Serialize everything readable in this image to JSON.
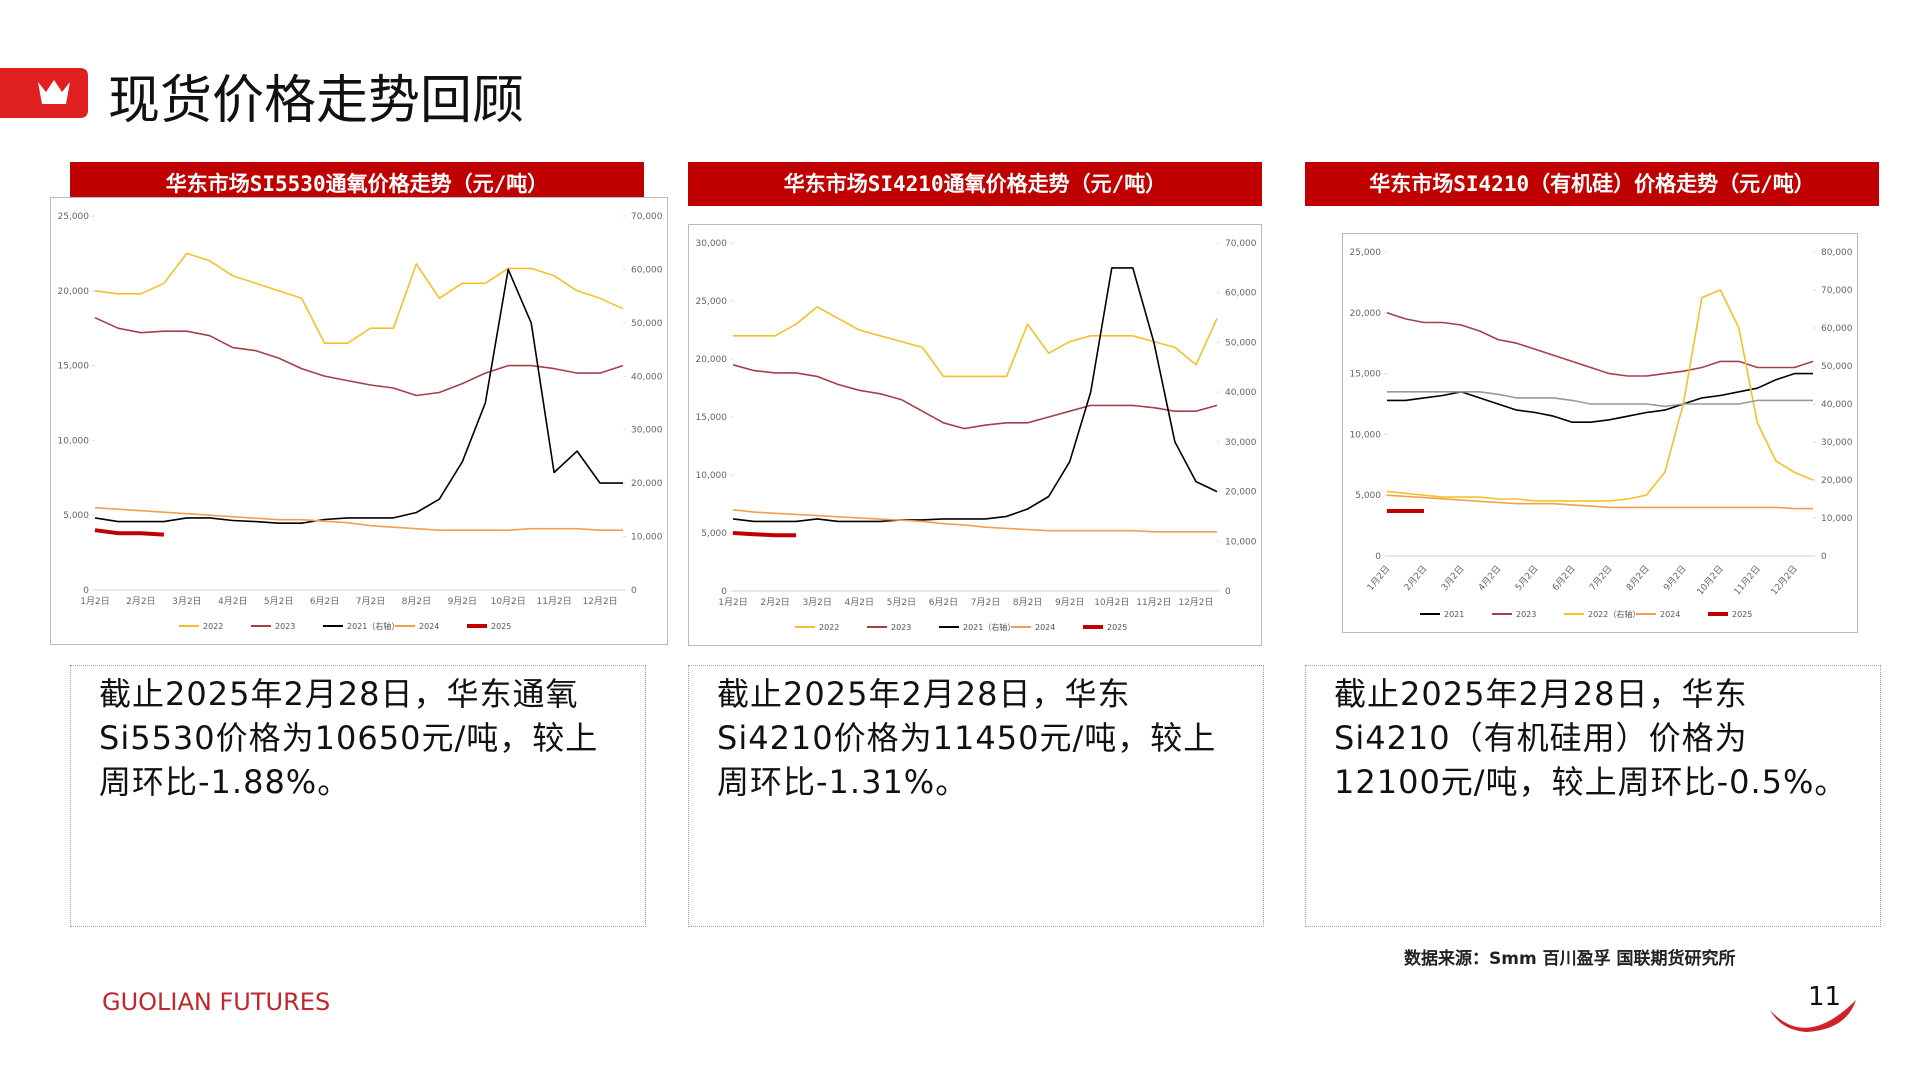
{
  "title": "现货价格走势回顾",
  "chart_data": [
    {
      "type": "line",
      "title": "华东市场SI5530通氧价格走势（元/吨）",
      "categories": [
        "1月2日",
        null,
        "2月2日",
        null,
        "3月2日",
        null,
        "4月2日",
        null,
        "5月2日",
        null,
        "6月2日",
        null,
        "7月2日",
        null,
        "8月2日",
        null,
        "9月2日",
        null,
        "10月2日",
        null,
        "11月2日",
        null,
        "12月2日",
        null
      ],
      "ylim": [
        0,
        25000
      ],
      "yticks": [
        0,
        {
          "value": 5000,
          "label": "5,000"
        },
        {
          "value": 10000,
          "label": "10,000"
        },
        {
          "value": 15000,
          "label": "15,000"
        },
        {
          "value": 20000,
          "label": "20,000"
        },
        {
          "value": 25000,
          "label": "25,000"
        }
      ],
      "y2lim": [
        0,
        70000
      ],
      "y2ticks": [
        0,
        {
          "value": 10000,
          "label": "10,000"
        },
        {
          "value": 20000,
          "label": "20,000"
        },
        {
          "value": 30000,
          "label": "30,000"
        },
        {
          "value": 40000,
          "label": "40,000"
        },
        {
          "value": 50000,
          "label": "50,000"
        },
        {
          "value": 60000,
          "label": "60,000"
        },
        {
          "value": 70000,
          "label": "70,000"
        }
      ],
      "legend": "bottom",
      "x_label_rotation": 0,
      "series": [
        {
          "name": "2022",
          "color": "#f5c02a",
          "values": [
            20000,
            19800,
            19800,
            20500,
            22500,
            22000,
            21000,
            20500,
            20000,
            19500,
            16500,
            16500,
            17500,
            17500,
            21800,
            19500,
            20500,
            20500,
            21500,
            21500,
            21000,
            20000,
            19500,
            18800
          ]
        },
        {
          "name": "2023",
          "color": "#a5404a",
          "values": [
            18200,
            17500,
            17200,
            17300,
            17300,
            17000,
            16200,
            16000,
            15500,
            14800,
            14300,
            14000,
            13700,
            13500,
            13000,
            13200,
            13800,
            14500,
            15000,
            15000,
            14800,
            14500,
            14500,
            15000
          ]
        },
        {
          "name": "2021（右轴）",
          "color": "#000000",
          "axis": "y2",
          "values": [
            13500,
            12800,
            12800,
            12800,
            13500,
            13500,
            13000,
            12800,
            12500,
            12500,
            13200,
            13500,
            13500,
            13500,
            14500,
            17000,
            24000,
            35000,
            60000,
            50000,
            22000,
            26000,
            20000,
            20000
          ]
        },
        {
          "name": "2024",
          "color": "#f0a050",
          "values": [
            5500,
            5400,
            5300,
            5200,
            5100,
            5000,
            4900,
            4800,
            4700,
            4700,
            4600,
            4500,
            4300,
            4200,
            4100,
            4000,
            4000,
            4000,
            4000,
            4100,
            4100,
            4100,
            4000,
            4000
          ]
        },
        {
          "name": "2025",
          "color": "#c00000",
          "width": 4,
          "values": [
            4000,
            3800,
            3800,
            3700,
            null,
            null,
            null,
            null,
            null,
            null,
            null,
            null,
            null,
            null,
            null,
            null,
            null,
            null,
            null,
            null,
            null,
            null,
            null,
            null
          ]
        }
      ]
    },
    {
      "type": "line",
      "title": "华东市场SI4210通氧价格走势（元/吨）",
      "categories": [
        "1月2日",
        null,
        "2月2日",
        null,
        "3月2日",
        null,
        "4月2日",
        null,
        "5月2日",
        null,
        "6月2日",
        null,
        "7月2日",
        null,
        "8月2日",
        null,
        "9月2日",
        null,
        "10月2日",
        null,
        "11月2日",
        null,
        "12月2日",
        null
      ],
      "ylim": [
        0,
        30000
      ],
      "yticks": [
        0,
        {
          "value": 5000,
          "label": "5,000"
        },
        {
          "value": 10000,
          "label": "10,000"
        },
        {
          "value": 15000,
          "label": "15,000"
        },
        {
          "value": 20000,
          "label": "20,000"
        },
        {
          "value": 25000,
          "label": "25,000"
        },
        {
          "value": 30000,
          "label": "30,000"
        }
      ],
      "y2lim": [
        0,
        70000
      ],
      "y2ticks": [
        0,
        {
          "value": 10000,
          "label": "10,000"
        },
        {
          "value": 20000,
          "label": "20,000"
        },
        {
          "value": 30000,
          "label": "30,000"
        },
        {
          "value": 40000,
          "label": "40,000"
        },
        {
          "value": 50000,
          "label": "50,000"
        },
        {
          "value": 60000,
          "label": "60,000"
        },
        {
          "value": 70000,
          "label": "70,000"
        }
      ],
      "legend": "bottom",
      "x_label_rotation": 0,
      "series": [
        {
          "name": "2022",
          "color": "#f5c02a",
          "values": [
            22000,
            22000,
            22000,
            23000,
            24500,
            23500,
            22500,
            22000,
            21500,
            21000,
            18500,
            18500,
            18500,
            18500,
            23000,
            20500,
            21500,
            22000,
            22000,
            22000,
            21500,
            21000,
            19500,
            23500
          ]
        },
        {
          "name": "2023",
          "color": "#a5404a",
          "values": [
            19500,
            19000,
            18800,
            18800,
            18500,
            17800,
            17300,
            17000,
            16500,
            15500,
            14500,
            14000,
            14300,
            14500,
            14500,
            15000,
            15500,
            16000,
            16000,
            16000,
            15800,
            15500,
            15500,
            16000
          ]
        },
        {
          "name": "2021（右轴）",
          "color": "#000000",
          "axis": "y2",
          "values": [
            14500,
            14000,
            14000,
            14000,
            14500,
            14000,
            14000,
            14000,
            14300,
            14300,
            14500,
            14500,
            14500,
            15000,
            16500,
            19000,
            26000,
            40000,
            65000,
            65000,
            50000,
            30000,
            22000,
            20000
          ]
        },
        {
          "name": "2024",
          "color": "#f0a050",
          "values": [
            7000,
            6800,
            6700,
            6600,
            6500,
            6400,
            6300,
            6200,
            6100,
            6000,
            5800,
            5700,
            5500,
            5400,
            5300,
            5200,
            5200,
            5200,
            5200,
            5200,
            5100,
            5100,
            5100,
            5100
          ]
        },
        {
          "name": "2025",
          "color": "#c00000",
          "width": 4,
          "values": [
            5000,
            4900,
            4800,
            4800,
            null,
            null,
            null,
            null,
            null,
            null,
            null,
            null,
            null,
            null,
            null,
            null,
            null,
            null,
            null,
            null,
            null,
            null,
            null,
            null
          ]
        }
      ]
    },
    {
      "type": "line",
      "title": "华东市场SI4210（有机硅）价格走势（元/吨）",
      "categories": [
        "1月2日",
        null,
        "2月2日",
        null,
        "3月2日",
        null,
        "4月2日",
        null,
        "5月2日",
        null,
        "6月2日",
        null,
        "7月2日",
        null,
        "8月2日",
        null,
        "9月2日",
        null,
        "10月2日",
        null,
        "11月2日",
        null,
        "12月2日",
        null
      ],
      "ylim": [
        0,
        25000
      ],
      "yticks": [
        0,
        {
          "value": 5000,
          "label": "5,000"
        },
        {
          "value": 10000,
          "label": "10,000"
        },
        {
          "value": 15000,
          "label": "15,000"
        },
        {
          "value": 20000,
          "label": "20,000"
        },
        {
          "value": 25000,
          "label": "25,000"
        }
      ],
      "y2lim": [
        0,
        80000
      ],
      "y2ticks": [
        0,
        {
          "value": 10000,
          "label": "10,000"
        },
        {
          "value": 20000,
          "label": "20,000"
        },
        {
          "value": 30000,
          "label": "30,000"
        },
        {
          "value": 40000,
          "label": "40,000"
        },
        {
          "value": 50000,
          "label": "50,000"
        },
        {
          "value": 60000,
          "label": "60,000"
        },
        {
          "value": 70000,
          "label": "70,000"
        },
        {
          "value": 80000,
          "label": "80,000"
        }
      ],
      "legend": "bottom",
      "x_label_rotation": -50,
      "series": [
        {
          "name": "2021",
          "color": "#000000",
          "values": [
            12800,
            12800,
            13000,
            13200,
            13500,
            13000,
            12500,
            12000,
            11800,
            11500,
            11000,
            11000,
            11200,
            11500,
            11800,
            12000,
            12500,
            13000,
            13200,
            13500,
            13800,
            14500,
            15000,
            15000
          ]
        },
        {
          "name": "2023",
          "color": "#a5404a",
          "values": [
            20000,
            19500,
            19200,
            19200,
            19000,
            18500,
            17800,
            17500,
            17000,
            16500,
            16000,
            15500,
            15000,
            14800,
            14800,
            15000,
            15200,
            15500,
            16000,
            16000,
            15500,
            15500,
            15500,
            16000
          ]
        },
        {
          "name": "2022（右轴）",
          "color": "#f5c02a",
          "axis": "y2",
          "values": [
            17000,
            16500,
            16000,
            15500,
            15500,
            15500,
            15000,
            15000,
            14500,
            14500,
            14500,
            14500,
            14500,
            15000,
            16000,
            22000,
            40000,
            68000,
            70000,
            60000,
            35000,
            25000,
            22000,
            20000
          ]
        },
        {
          "name": "2024",
          "color": "#f0a050",
          "values": [
            5000,
            4900,
            4800,
            4700,
            4600,
            4500,
            4400,
            4300,
            4300,
            4300,
            4200,
            4100,
            4000,
            4000,
            4000,
            4000,
            4000,
            4000,
            4000,
            4000,
            4000,
            4000,
            3900,
            3900
          ]
        },
        {
          "name": "2025",
          "color": "#c00000",
          "width": 4,
          "values": [
            3700,
            3700,
            3700,
            null,
            null,
            null,
            null,
            null,
            null,
            null,
            null,
            null,
            null,
            null,
            null,
            null,
            null,
            null,
            null,
            null,
            null,
            null,
            null,
            null
          ]
        },
        {
          "name": null,
          "color": "#999999",
          "values": [
            13500,
            13500,
            13500,
            13500,
            13500,
            13500,
            13300,
            13000,
            13000,
            13000,
            12800,
            12500,
            12500,
            12500,
            12500,
            12300,
            12500,
            12500,
            12500,
            12500,
            12800,
            12800,
            12800,
            12800
          ]
        }
      ]
    }
  ],
  "notes": [
    "截止2025年2月28日，华东通氧Si5530价格为10650元/吨，较上周环比-1.88%。",
    "截止2025年2月28日，华东Si4210价格为11450元/吨，较上周环比-1.31%。",
    "截止2025年2月28日，华东Si4210（有机硅用）价格为12100元/吨，较上周环比-0.5%。"
  ],
  "source": "数据来源：Smm 百川盈孚 国联期货研究所",
  "footer": "GUOLIAN FUTURES",
  "page_number": "11"
}
